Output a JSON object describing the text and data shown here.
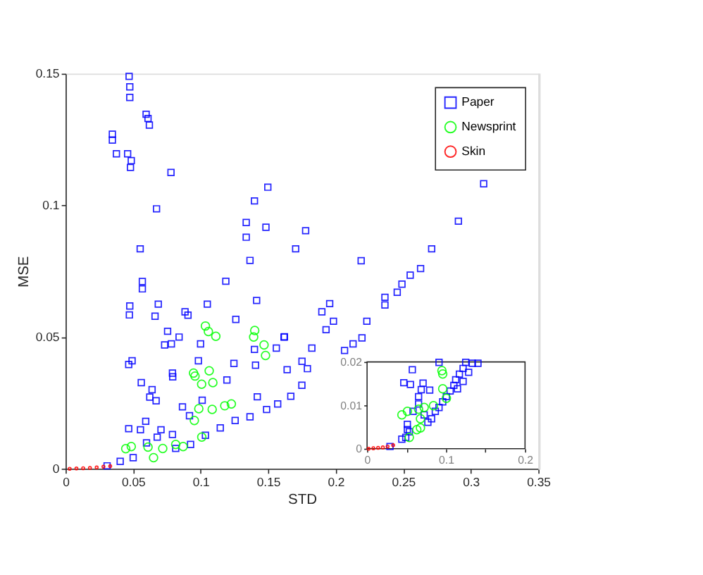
{
  "chart_data": [
    {
      "type": "scatter",
      "xlabel": "STD",
      "ylabel": "MSE",
      "xlim": [
        0,
        0.35
      ],
      "ylim": [
        0,
        0.15
      ],
      "xticks": [
        0,
        0.05,
        0.1,
        0.15,
        0.2,
        0.25,
        0.3,
        0.35
      ],
      "yticks": [
        0,
        0.05,
        0.1,
        0.15
      ],
      "legend": "top right",
      "series": [
        {
          "name": "Paper",
          "color": "#0000ff",
          "marker": "square",
          "x": [
            0.047,
            0.0475,
            0.0475,
            0.0596,
            0.061,
            0.062,
            0.0346,
            0.0346,
            0.0376,
            0.0459,
            0.0486,
            0.048,
            0.078,
            0.1497,
            0.1398,
            0.0673,
            0.1337,
            0.1483,
            0.1337,
            0.1777,
            0.0552,
            0.1703,
            0.1365,
            0.3095,
            0.2908,
            0.271,
            0.2188,
            0.2628,
            0.2551,
            0.249,
            0.2455,
            0.2364,
            0.2364,
            0.1955,
            0.1897,
            0.1928,
            0.1983,
            0.223,
            0.2194,
            0.2128,
            0.2065,
            0.1617,
            0.1823,
            0.0568,
            0.0568,
            0.1186,
            0.0475,
            0.0472,
            0.0686,
            0.0662,
            0.0884,
            0.0906,
            0.1049,
            0.1414,
            0.126,
            0.0755,
            0.084,
            0.0733,
            0.0783,
            0.0999,
            0.162,
            0.156,
            0.1398,
            0.0492,
            0.0467,
            0.0983,
            0.1246,
            0.1406,
            0.0791,
            0.0793,
            0.056,
            0.1194,
            0.064,
            0.0623,
            0.067,
            0.0865,
            0.1011,
            0.1419,
            0.0917,
            0.0593,
            0.0467,
            0.0554,
            0.0706,
            0.0791,
            0.0599,
            0.0307,
            0.0404,
            0.05,
            0.0678,
            0.0815,
            0.0925,
            0.1035,
            0.1145,
            0.1255,
            0.1365,
            0.1488,
            0.157,
            0.1667,
            0.1749,
            0.179,
            0.164,
            0.175
          ],
          "values": [
            0.149,
            0.145,
            0.141,
            0.1346,
            0.133,
            0.1305,
            0.127,
            0.1248,
            0.1196,
            0.1196,
            0.117,
            0.1144,
            0.1125,
            0.1069,
            0.1017,
            0.0987,
            0.0935,
            0.0917,
            0.0879,
            0.0904,
            0.0835,
            0.0835,
            0.0791,
            0.1082,
            0.094,
            0.0835,
            0.079,
            0.076,
            0.0735,
            0.0701,
            0.067,
            0.0651,
            0.0622,
            0.0627,
            0.0596,
            0.0528,
            0.056,
            0.056,
            0.0497,
            0.0474,
            0.0449,
            0.05,
            0.0458,
            0.0711,
            0.0683,
            0.0712,
            0.0618,
            0.0584,
            0.0625,
            0.0579,
            0.0596,
            0.0583,
            0.0625,
            0.0639,
            0.0567,
            0.0522,
            0.05,
            0.047,
            0.0474,
            0.0474,
            0.0501,
            0.0458,
            0.0453,
            0.041,
            0.0396,
            0.041,
            0.04,
            0.0393,
            0.0363,
            0.0349,
            0.0327,
            0.0337,
            0.03,
            0.0272,
            0.0258,
            0.0235,
            0.026,
            0.0273,
            0.0201,
            0.018,
            0.0152,
            0.0148,
            0.0148,
            0.013,
            0.0098,
            0.0011,
            0.0028,
            0.0042,
            0.012,
            0.0077,
            0.0092,
            0.0127,
            0.0155,
            0.0183,
            0.0197,
            0.0225,
            0.0246,
            0.0275,
            0.0317,
            0.038,
            0.0376,
            0.0408
          ]
        },
        {
          "name": "Newsprint",
          "color": "#00ff00",
          "marker": "circle",
          "x": [
            0.1035,
            0.1057,
            0.1112,
            0.14,
            0.1392,
            0.1469,
            0.148,
            0.0947,
            0.0958,
            0.1063,
            0.1007,
            0.109,
            0.0986,
            0.1085,
            0.1178,
            0.1227,
            0.0953,
            0.1008,
            0.0815,
            0.0445,
            0.0486,
            0.061,
            0.0651,
            0.0719,
            0.087
          ],
          "values": [
            0.0542,
            0.0521,
            0.0503,
            0.0525,
            0.05,
            0.047,
            0.043,
            0.0363,
            0.0352,
            0.0372,
            0.0321,
            0.0327,
            0.0228,
            0.0225,
            0.0239,
            0.0246,
            0.0183,
            0.012,
            0.0092,
            0.0076,
            0.0084,
            0.0082,
            0.0042,
            0.0077,
            0.0084
          ]
        },
        {
          "name": "Skin",
          "color": "#ff0000",
          "marker": "circle",
          "x": [
            0.003,
            0.008,
            0.013,
            0.018,
            0.023,
            0.028,
            0.033
          ],
          "values": [
            0,
            0.0001,
            0.0002,
            0.0003,
            0.0005,
            0.0008,
            0.001
          ]
        }
      ]
    },
    {
      "type": "scatter",
      "xlim": [
        0,
        0.2
      ],
      "ylim": [
        0,
        0.02
      ],
      "xticks": [
        0,
        {
          "value": 0.05,
          "label": null
        },
        0.1,
        {
          "value": 0.15,
          "label": null
        },
        0.2
      ],
      "yticks": [
        0,
        0.01,
        0.02
      ],
      "series": [
        {
          "color": "#0000ff",
          "marker": "square",
          "x": [
            0.029,
            0.044,
            0.049,
            0.0535,
            0.051,
            0.0573,
            0.0465,
            0.0549,
            0.0709,
            0.0686,
            0.0793,
            0.0652,
            0.0652,
            0.0911,
            0.0582,
            0.0723,
            0.0864,
            0.0911,
            0.0958,
            0.1004,
            0.1052,
            0.1099,
            0.1122,
            0.1169,
            0.1216,
            0.1249,
            0.1333,
            0.1404,
            0.1286,
            0.1216,
            0.1145,
            0.0817,
            0.077,
            0.051
          ],
          "values": [
            0.0005,
            0.0022,
            0.0026,
            0.0039,
            0.0056,
            0.0182,
            0.0152,
            0.0148,
            0.0151,
            0.0136,
            0.0135,
            0.012,
            0.0103,
            0.0199,
            0.0086,
            0.0078,
            0.0086,
            0.0095,
            0.0108,
            0.012,
            0.0133,
            0.0146,
            0.0159,
            0.0172,
            0.0185,
            0.0199,
            0.0197,
            0.0197,
            0.0176,
            0.0155,
            0.0138,
            0.0069,
            0.0061,
            0.0044
          ]
        },
        {
          "color": "#00ff00",
          "marker": "circle",
          "x": [
            0.0948,
            0.0958,
            0.0441,
            0.0511,
            0.0652,
            0.0723,
            0.0676,
            0.0676,
            0.063,
            0.0841,
            0.1004,
            0.0535,
            0.0958
          ],
          "values": [
            0.018,
            0.0172,
            0.0078,
            0.0086,
            0.0091,
            0.0095,
            0.0069,
            0.0048,
            0.0044,
            0.0099,
            0.0116,
            0.0026,
            0.0138
          ]
        },
        {
          "color": "#ff0000",
          "marker": "circle",
          "x": [
            0.002,
            0.008,
            0.014,
            0.02,
            0.026,
            0.033
          ],
          "values": [
            0,
            0.0001,
            0.0002,
            0.0003,
            0.0005,
            0.0008
          ]
        }
      ]
    }
  ]
}
